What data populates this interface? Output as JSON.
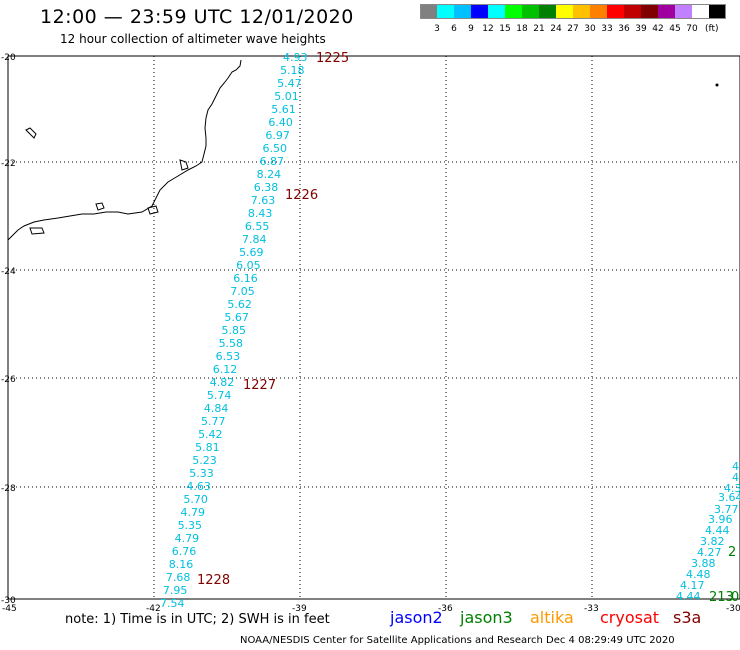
{
  "header": {
    "title": "12:00 — 23:59 UTC 12/01/2020",
    "subtitle": "12 hour collection of altimeter wave heights"
  },
  "color_scale": {
    "colors": [
      "#808080",
      "#00ffff",
      "#00c0ff",
      "#0000ff",
      "#00ffff",
      "#00ff00",
      "#00c000",
      "#008000",
      "#ffff00",
      "#ffc000",
      "#ff8000",
      "#ff0000",
      "#c00000",
      "#800000",
      "#a000a0",
      "#c080ff",
      "#ffffff",
      "#000000"
    ],
    "labels": [
      "3",
      "6",
      "9",
      "12",
      "15",
      "18",
      "21",
      "24",
      "27",
      "30",
      "33",
      "36",
      "39",
      "42",
      "45",
      "70"
    ],
    "unit": "(ft)"
  },
  "axes": {
    "lat_ticks": [
      "-20",
      "-22",
      "-24",
      "-26",
      "-28",
      "-30"
    ],
    "lon_ticks": [
      "-45",
      "-42",
      "-39",
      "-36",
      "-33",
      "-30"
    ]
  },
  "track_main": {
    "color": "#00bfdf",
    "values": [
      "4.93",
      "5.18",
      "5.47",
      "5.01",
      "5.61",
      "6.40",
      "6.97",
      "6.50",
      "6.87",
      "8.24",
      "6.38",
      "7.63",
      "8.43",
      "6.55",
      "7.84",
      "5.69",
      "6.05",
      "6.16",
      "7.05",
      "5.62",
      "5.67",
      "5.85",
      "5.58",
      "6.53",
      "6.12",
      "4.82",
      "5.74",
      "4.84",
      "5.77",
      "5.42",
      "5.81",
      "5.23",
      "5.33",
      "4.63",
      "5.70",
      "4.79",
      "5.35",
      "4.79",
      "6.76",
      "8.16",
      "7.68",
      "7.95",
      "7.54"
    ]
  },
  "track_east": {
    "values": [
      "4.",
      "4.",
      "4.3",
      "3.64",
      "3.77",
      "3.96",
      "4.44",
      "3.82",
      "4.27",
      "3.88",
      "4.48",
      "4.17",
      "4.44"
    ]
  },
  "time_labels": {
    "color": "#800000",
    "main": [
      "1225",
      "1226",
      "1227",
      "1228"
    ],
    "east": [
      {
        "text": "2",
        "color": "#008000"
      },
      {
        "text": "213",
        "color": "#008000"
      },
      {
        "text": "0",
        "color": "#008000"
      }
    ]
  },
  "notes": {
    "note": "note: 1) Time is in UTC; 2) SWH is in feet"
  },
  "satellites": [
    {
      "name": "jason2",
      "color": "#0000ff"
    },
    {
      "name": "jason3",
      "color": "#008000"
    },
    {
      "name": "altika",
      "color": "#ff9900"
    },
    {
      "name": "cryosat",
      "color": "#ff0000"
    },
    {
      "name": "s3a",
      "color": "#800000"
    }
  ],
  "footer": "NOAA/NESDIS Center for Satellite Applications and Research    Dec  4 08:29:49 UTC 2020"
}
